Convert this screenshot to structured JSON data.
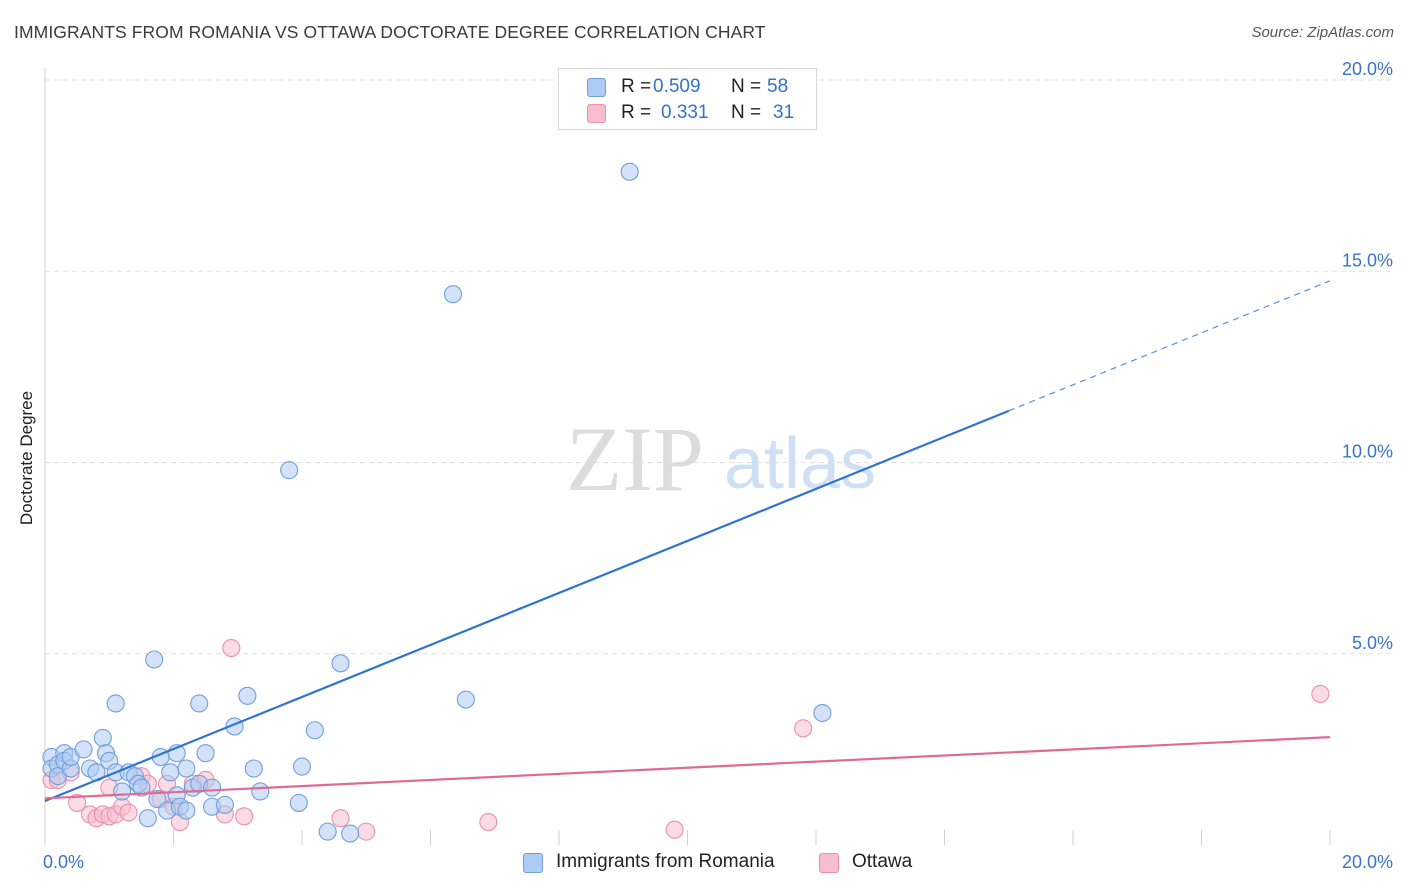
{
  "title": "IMMIGRANTS FROM ROMANIA VS OTTAWA DOCTORATE DEGREE CORRELATION CHART",
  "source": "Source: ZipAtlas.com",
  "watermark": {
    "zip": "ZIP",
    "atlas": "atlas"
  },
  "legend": {
    "series": [
      {
        "r_label": "R =",
        "r_value": "0.509",
        "n_label": "N =",
        "n_value": "58"
      },
      {
        "r_label": "R =",
        "r_value": "0.331",
        "n_label": "N =",
        "n_value": "31"
      }
    ]
  },
  "bottom_legend": [
    "Immigrants from Romania",
    "Ottawa"
  ],
  "colors": {
    "blue_fill": "#aecbf2",
    "blue_stroke": "#6f9fdc",
    "blue_line": "#2f74d0",
    "pink_fill": "#f7bdd0",
    "pink_stroke": "#ea8fae",
    "pink_line": "#e06a96",
    "tick_label": "#3a74c8",
    "grid": "#e0e0e0"
  },
  "chart_data": {
    "type": "scatter",
    "title": "IMMIGRANTS FROM ROMANIA VS OTTAWA DOCTORATE DEGREE CORRELATION CHART",
    "xlabel": "",
    "ylabel": "Doctorate Degree",
    "xlim": [
      0,
      20
    ],
    "ylim": [
      0,
      20
    ],
    "x_tick_labels": [
      "0.0%",
      "20.0%"
    ],
    "y_ticks": [
      5,
      10,
      15,
      20
    ],
    "y_tick_labels": [
      "5.0%",
      "10.0%",
      "15.0%",
      "20.0%"
    ],
    "grid": true,
    "legend_position": "top-center",
    "series": [
      {
        "name": "Immigrants from Romania",
        "r": 0.509,
        "n": 58,
        "trend": {
          "x0": 0.0,
          "y0": 1.15,
          "x1": 15.0,
          "y1": 11.35,
          "dash_to_x": 20.0,
          "dash_to_y": 14.75
        },
        "points": [
          [
            0.1,
            2.3
          ],
          [
            0.1,
            2.0
          ],
          [
            0.2,
            2.1
          ],
          [
            0.2,
            1.8
          ],
          [
            0.3,
            2.4
          ],
          [
            0.3,
            2.2
          ],
          [
            0.4,
            2.0
          ],
          [
            0.4,
            2.3
          ],
          [
            0.6,
            2.5
          ],
          [
            0.7,
            2.0
          ],
          [
            0.8,
            1.9
          ],
          [
            0.9,
            2.8
          ],
          [
            0.95,
            2.4
          ],
          [
            1.0,
            2.2
          ],
          [
            1.1,
            1.9
          ],
          [
            1.1,
            3.7
          ],
          [
            1.2,
            1.4
          ],
          [
            1.3,
            1.9
          ],
          [
            1.4,
            1.8
          ],
          [
            1.45,
            1.6
          ],
          [
            1.5,
            1.5
          ],
          [
            1.6,
            0.7
          ],
          [
            1.7,
            4.85
          ],
          [
            1.75,
            1.2
          ],
          [
            1.8,
            2.3
          ],
          [
            1.9,
            0.9
          ],
          [
            1.95,
            1.9
          ],
          [
            2.05,
            1.3
          ],
          [
            2.05,
            2.4
          ],
          [
            2.1,
            1.0
          ],
          [
            2.2,
            0.9
          ],
          [
            2.2,
            2.0
          ],
          [
            2.3,
            1.5
          ],
          [
            2.4,
            1.6
          ],
          [
            2.4,
            3.7
          ],
          [
            2.5,
            2.4
          ],
          [
            2.6,
            1.5
          ],
          [
            2.6,
            1.0
          ],
          [
            2.8,
            1.05
          ],
          [
            2.95,
            3.1
          ],
          [
            3.15,
            3.9
          ],
          [
            3.25,
            2.0
          ],
          [
            3.35,
            1.4
          ],
          [
            3.8,
            9.8
          ],
          [
            3.95,
            1.1
          ],
          [
            4.0,
            2.05
          ],
          [
            4.2,
            3.0
          ],
          [
            4.4,
            0.35
          ],
          [
            4.6,
            4.75
          ],
          [
            4.75,
            0.3
          ],
          [
            6.35,
            14.4
          ],
          [
            6.55,
            3.8
          ],
          [
            9.1,
            17.6
          ],
          [
            12.1,
            3.45
          ]
        ]
      },
      {
        "name": "Ottawa",
        "r": 0.331,
        "n": 31,
        "trend": {
          "x0": 0.0,
          "y0": 1.22,
          "x1": 20.0,
          "y1": 2.82
        },
        "points": [
          [
            0.1,
            1.7
          ],
          [
            0.2,
            1.7
          ],
          [
            0.4,
            1.9
          ],
          [
            0.5,
            1.1
          ],
          [
            0.7,
            0.8
          ],
          [
            0.8,
            0.7
          ],
          [
            0.9,
            0.8
          ],
          [
            1.0,
            0.75
          ],
          [
            1.0,
            1.5
          ],
          [
            1.1,
            0.8
          ],
          [
            1.2,
            1.0
          ],
          [
            1.3,
            0.85
          ],
          [
            1.5,
            1.8
          ],
          [
            1.6,
            1.6
          ],
          [
            1.8,
            1.2
          ],
          [
            1.9,
            1.6
          ],
          [
            2.0,
            1.0
          ],
          [
            2.1,
            0.6
          ],
          [
            2.3,
            1.6
          ],
          [
            2.5,
            1.7
          ],
          [
            2.8,
            0.8
          ],
          [
            2.9,
            5.15
          ],
          [
            3.1,
            0.75
          ],
          [
            4.6,
            0.7
          ],
          [
            5.0,
            0.35
          ],
          [
            6.9,
            0.6
          ],
          [
            9.8,
            0.4
          ],
          [
            11.8,
            3.05
          ],
          [
            19.85,
            3.95
          ]
        ]
      }
    ]
  }
}
